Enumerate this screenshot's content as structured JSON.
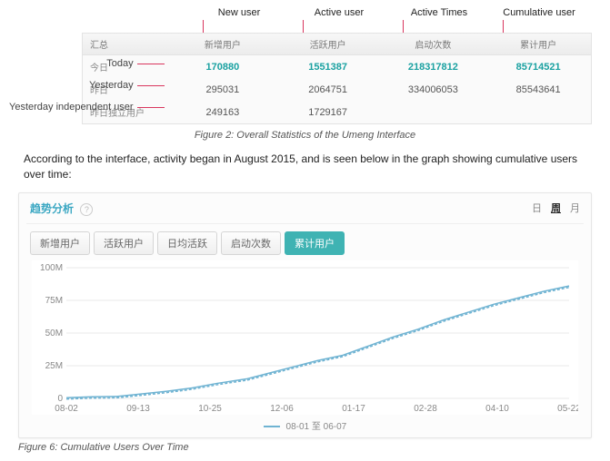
{
  "stats": {
    "col_english": [
      "New user",
      "Active user",
      "Active Times",
      "Cumulative user"
    ],
    "head_cn_spacer": "汇总",
    "head_cn": [
      "新增用户",
      "活跃用户",
      "启动次数",
      "累计用户"
    ],
    "rows": [
      {
        "en": "Today",
        "cn": "今日",
        "cells": [
          "170880",
          "1551387",
          "218317812",
          "85714521"
        ],
        "teal": true
      },
      {
        "en": "Yesterday",
        "cn": "昨日",
        "cells": [
          "295031",
          "2064751",
          "334006053",
          "85543641"
        ],
        "teal": false
      },
      {
        "en": "Yesterday independent user",
        "cn": "昨日独立用户",
        "cells": [
          "249163",
          "1729167",
          "",
          ""
        ],
        "teal": false
      }
    ],
    "caption": "Figure 2: Overall Statistics of the Umeng Interface",
    "pointer_color": "#d9365e"
  },
  "paragraph": "According to the interface, activity began in August 2015, and is seen below in the graph showing cumulative users over time:",
  "chart": {
    "title": "趋势分析",
    "period_tabs": [
      "日",
      "周",
      "月"
    ],
    "period_selected": 1,
    "category_tabs": [
      "新增用户",
      "活跃用户",
      "日均活跃",
      "启动次数",
      "累计用户"
    ],
    "category_selected": 4,
    "ylabels": [
      "0",
      "25M",
      "50M",
      "75M",
      "100M"
    ],
    "ymax": 100,
    "xlabels": [
      "08-02",
      "09-13",
      "10-25",
      "12-06",
      "01-17",
      "02-28",
      "04-10",
      "05-22"
    ],
    "series_color": "#6fb3d2",
    "grid_color": "#e8e8e8",
    "bg_color": "#ffffff",
    "data": [
      {
        "x": 0.0,
        "y": 0.5
      },
      {
        "x": 0.05,
        "y": 1.2
      },
      {
        "x": 0.1,
        "y": 1.5
      },
      {
        "x": 0.14,
        "y": 3.0
      },
      {
        "x": 0.2,
        "y": 5.5
      },
      {
        "x": 0.25,
        "y": 8.0
      },
      {
        "x": 0.3,
        "y": 11.5
      },
      {
        "x": 0.36,
        "y": 15.0
      },
      {
        "x": 0.4,
        "y": 19.0
      },
      {
        "x": 0.45,
        "y": 24.0
      },
      {
        "x": 0.5,
        "y": 29.0
      },
      {
        "x": 0.55,
        "y": 33.0
      },
      {
        "x": 0.6,
        "y": 40.0
      },
      {
        "x": 0.65,
        "y": 47.0
      },
      {
        "x": 0.7,
        "y": 53.0
      },
      {
        "x": 0.75,
        "y": 60.0
      },
      {
        "x": 0.8,
        "y": 66.0
      },
      {
        "x": 0.85,
        "y": 72.0
      },
      {
        "x": 0.9,
        "y": 77.0
      },
      {
        "x": 0.95,
        "y": 82.0
      },
      {
        "x": 1.0,
        "y": 86.0
      }
    ],
    "legend": "08-01 至 06-07"
  },
  "fig6_caption": "Figure 6: Cumulative Users Over Time"
}
